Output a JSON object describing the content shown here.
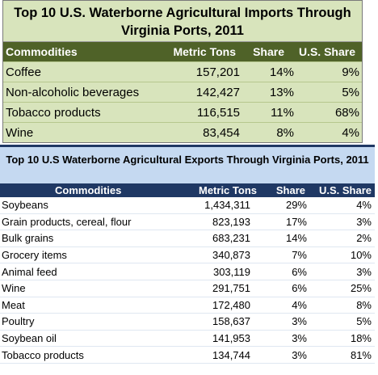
{
  "imports": {
    "title": "Top 10 U.S. Waterborne Agricultural Imports Through Virginia Ports, 2011",
    "headers": [
      "Commodities",
      "Metric Tons",
      "Share",
      "U.S. Share"
    ],
    "rows": [
      [
        "Coffee",
        "157,201",
        "14%",
        "9%"
      ],
      [
        "Non-alcoholic beverages",
        "142,427",
        "13%",
        "5%"
      ],
      [
        "Tobacco products",
        "116,515",
        "11%",
        "68%"
      ],
      [
        "Wine",
        "83,454",
        "8%",
        "4%"
      ]
    ]
  },
  "exports": {
    "title": "Top 10 U.S Waterborne Agricultural Exports Through Virginia Ports, 2011",
    "headers": [
      "Commodities",
      "Metric Tons",
      "Share",
      "U.S. Share"
    ],
    "rows": [
      [
        "Soybeans",
        "1,434,311",
        "29%",
        "4%"
      ],
      [
        "Grain products, cereal, flour",
        "823,193",
        "17%",
        "3%"
      ],
      [
        "Bulk grains",
        "683,231",
        "14%",
        "2%"
      ],
      [
        "Grocery items",
        "340,873",
        "7%",
        "10%"
      ],
      [
        "Animal feed",
        "303,119",
        "6%",
        "3%"
      ],
      [
        "Wine",
        "291,751",
        "6%",
        "25%"
      ],
      [
        "Meat",
        "172,480",
        "4%",
        "8%"
      ],
      [
        "Poultry",
        "158,637",
        "3%",
        "5%"
      ],
      [
        "Soybean oil",
        "141,953",
        "3%",
        "18%"
      ],
      [
        "Tobacco products",
        "134,744",
        "3%",
        "81%"
      ]
    ]
  }
}
